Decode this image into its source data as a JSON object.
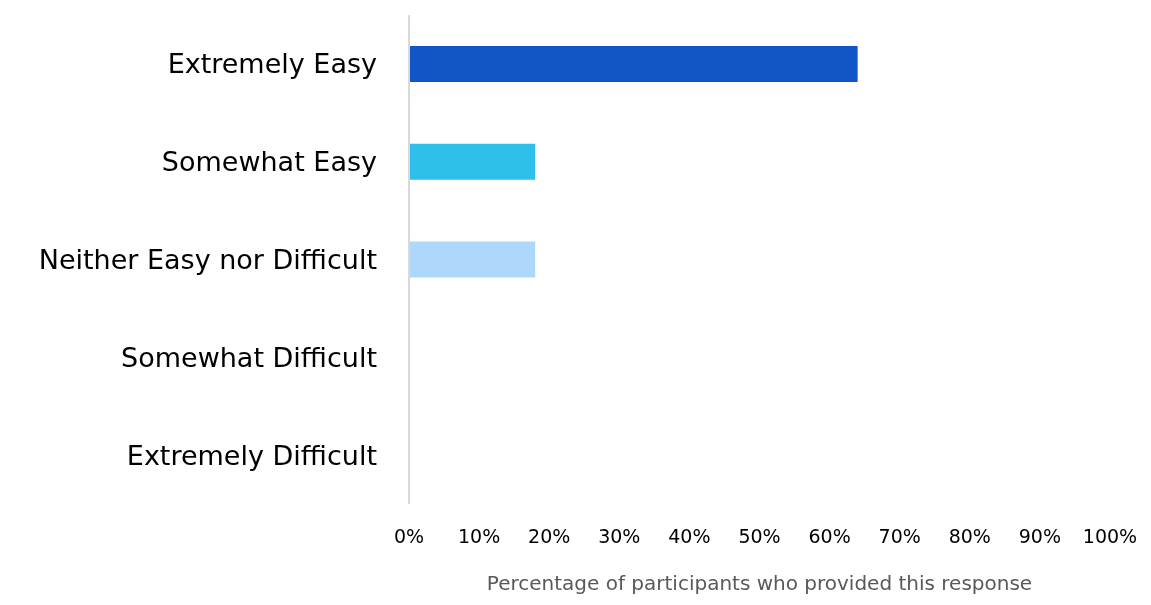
{
  "chart_data": {
    "type": "bar",
    "orientation": "horizontal",
    "categories": [
      "Extremely Easy",
      "Somewhat Easy",
      "Neither Easy nor Difficult",
      "Somewhat Difficult",
      "Extremely Difficult"
    ],
    "values": [
      64,
      18,
      18,
      0,
      0
    ],
    "colors": [
      "#1155c6",
      "#2ec0ea",
      "#add8fb",
      "#1155c6",
      "#1155c6"
    ],
    "xlabel": "Percentage of participants who provided this response",
    "xlim": [
      0,
      100
    ],
    "xticks": [
      {
        "value": 0,
        "label": "0%"
      },
      {
        "value": 10,
        "label": "10%"
      },
      {
        "value": 20,
        "label": "20%"
      },
      {
        "value": 30,
        "label": "30%"
      },
      {
        "value": 40,
        "label": "40%"
      },
      {
        "value": 50,
        "label": "50%"
      },
      {
        "value": 60,
        "label": "60%"
      },
      {
        "value": 70,
        "label": "70%"
      },
      {
        "value": 80,
        "label": "80%"
      },
      {
        "value": 90,
        "label": "90%"
      },
      {
        "value": 100,
        "label": "100%"
      }
    ],
    "grid": false,
    "legend": false
  }
}
